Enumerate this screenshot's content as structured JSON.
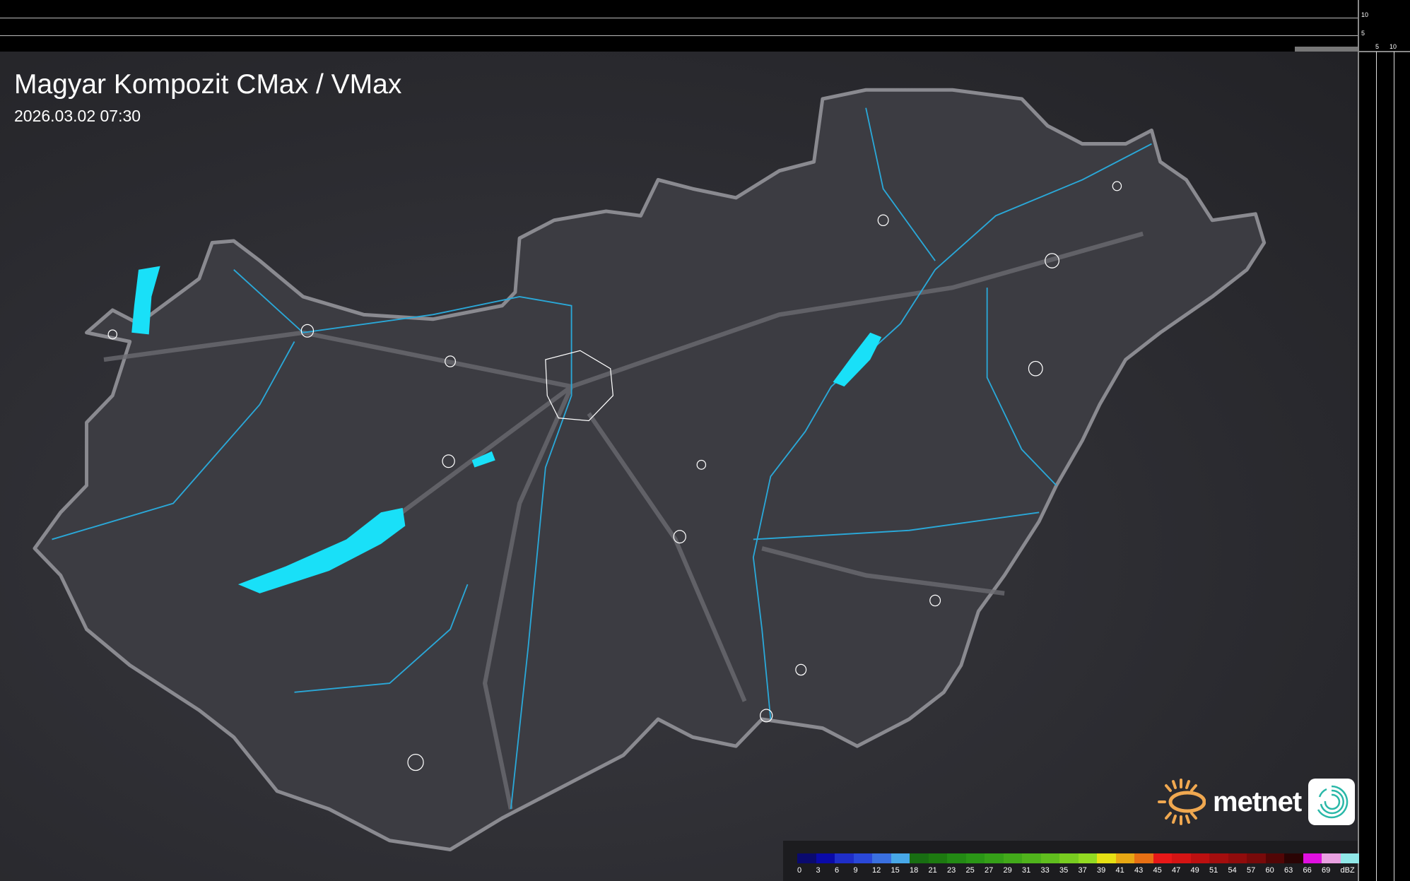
{
  "title": "Magyar Kompozit CMax / VMax",
  "timestamp": "2026.03.02 07:30",
  "side_panel": {
    "row_ticks": [
      "10",
      "5"
    ],
    "col_ticks": [
      "5",
      "10"
    ]
  },
  "logo": {
    "brand": "metnet",
    "sun_color": "#f0a850",
    "icon_color": "#2ab8a8"
  },
  "colors": {
    "border": "#8a8a90",
    "rivers": "#2aa8d8",
    "lakes": "#19e0f8",
    "cities": "#ffffff",
    "country_fill": "#3c3c42"
  },
  "legend": {
    "unit": "dBZ",
    "items": [
      {
        "label": "0",
        "color": "#0a0a6e"
      },
      {
        "label": "3",
        "color": "#0a0aa8"
      },
      {
        "label": "6",
        "color": "#1f2ec8"
      },
      {
        "label": "9",
        "color": "#2a48d8"
      },
      {
        "label": "12",
        "color": "#3a70e0"
      },
      {
        "label": "15",
        "color": "#48a8e8"
      },
      {
        "label": "18",
        "color": "#186e12"
      },
      {
        "label": "21",
        "color": "#1d7a10"
      },
      {
        "label": "23",
        "color": "#238a14"
      },
      {
        "label": "25",
        "color": "#2a9616"
      },
      {
        "label": "27",
        "color": "#35a018"
      },
      {
        "label": "29",
        "color": "#42aa1a"
      },
      {
        "label": "31",
        "color": "#50b41c"
      },
      {
        "label": "33",
        "color": "#60be1e"
      },
      {
        "label": "35",
        "color": "#78cc20"
      },
      {
        "label": "37",
        "color": "#92da22"
      },
      {
        "label": "39",
        "color": "#e6e014"
      },
      {
        "label": "41",
        "color": "#e8a814"
      },
      {
        "label": "43",
        "color": "#e87014"
      },
      {
        "label": "45",
        "color": "#e81818"
      },
      {
        "label": "47",
        "color": "#d41414"
      },
      {
        "label": "49",
        "color": "#bc1010"
      },
      {
        "label": "51",
        "color": "#a40e0e"
      },
      {
        "label": "54",
        "color": "#900c0c"
      },
      {
        "label": "57",
        "color": "#780a0a"
      },
      {
        "label": "60",
        "color": "#520606"
      },
      {
        "label": "63",
        "color": "#2a0404"
      },
      {
        "label": "66",
        "color": "#e010e0"
      },
      {
        "label": "69",
        "color": "#e8a0e0"
      },
      {
        "label": "",
        "color": "#90e8e8"
      }
    ]
  }
}
